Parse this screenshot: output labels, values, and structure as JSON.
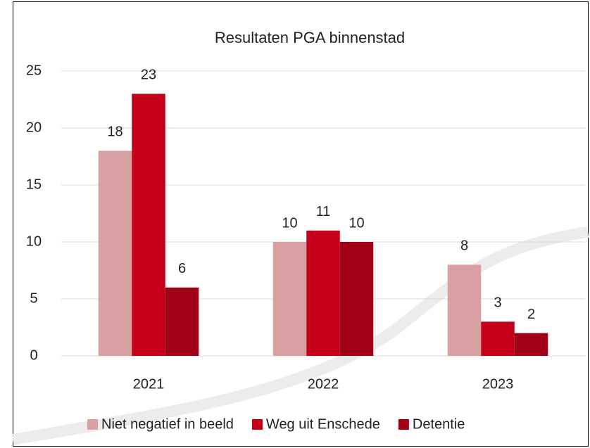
{
  "chart_data": {
    "type": "bar",
    "title": "Resultaten PGA binnenstad",
    "categories": [
      "2021",
      "2022",
      "2023"
    ],
    "series": [
      {
        "name": "Niet negatief in beeld",
        "color": "#d9a0a2",
        "values": [
          18,
          10,
          8
        ]
      },
      {
        "name": "Weg uit Enschede",
        "color": "#c5001a",
        "values": [
          23,
          11,
          3
        ]
      },
      {
        "name": "Detentie",
        "color": "#a00016",
        "values": [
          6,
          10,
          2
        ]
      }
    ],
    "ylim": [
      0,
      25
    ],
    "yticks": [
      0,
      5,
      10,
      15,
      20,
      25
    ],
    "grid": true,
    "legend": "bottom"
  }
}
